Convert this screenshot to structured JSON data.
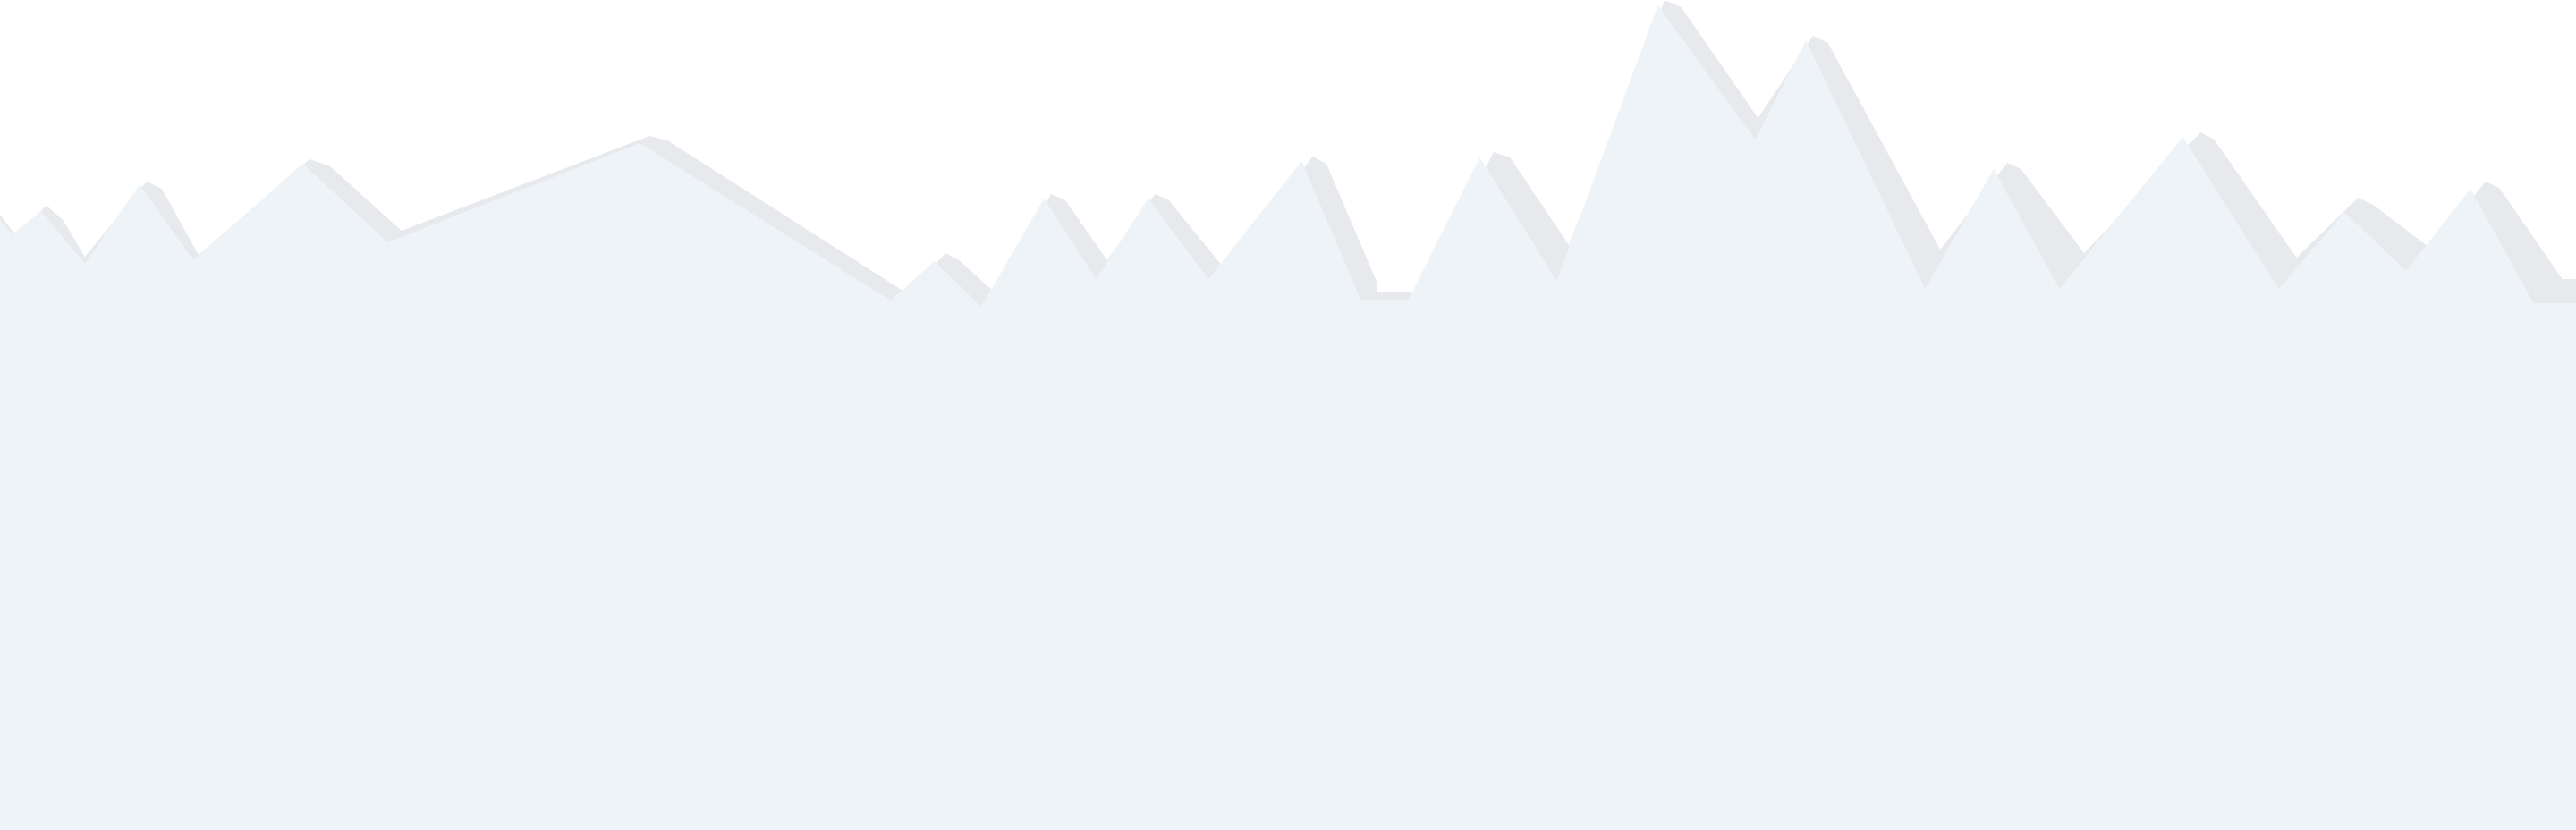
{
  "colors": {
    "background": "#ffffff",
    "silhouette_fill": "#eef3f7",
    "silhouette_edge": "#e7e9ec"
  }
}
